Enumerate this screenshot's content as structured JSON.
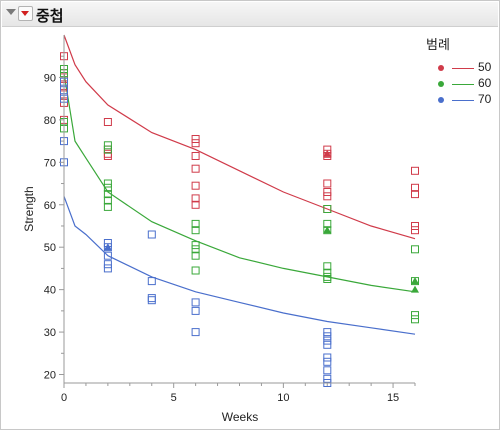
{
  "header": {
    "title": "중첩"
  },
  "legend": {
    "title": "범례",
    "items": [
      {
        "label": "50",
        "color": "#d03b4a"
      },
      {
        "label": "60",
        "color": "#3aa83a"
      },
      {
        "label": "70",
        "color": "#4a6fcc"
      }
    ]
  },
  "chart_data": {
    "type": "scatter",
    "title": "",
    "xlabel": "Weeks",
    "ylabel": "Strength",
    "xlim": [
      0,
      16
    ],
    "ylim": [
      18,
      100
    ],
    "xticks": [
      0,
      5,
      10,
      15
    ],
    "yticks": [
      20,
      30,
      40,
      50,
      60,
      70,
      80,
      90
    ],
    "grid": false,
    "legend_position": "right",
    "series": [
      {
        "name": "50",
        "color": "#d03b4a",
        "points": [
          [
            0,
            95
          ],
          [
            0,
            92
          ],
          [
            0,
            91
          ],
          [
            0,
            90
          ],
          [
            0,
            88
          ],
          [
            0,
            86
          ],
          [
            0,
            84
          ],
          [
            0,
            80
          ],
          [
            2,
            79.5
          ],
          [
            2,
            73
          ],
          [
            2,
            72
          ],
          [
            2,
            71.5
          ],
          [
            6,
            75.5
          ],
          [
            6,
            74.5
          ],
          [
            6,
            71.5
          ],
          [
            6,
            68.5
          ],
          [
            6,
            64.5
          ],
          [
            6,
            61.5
          ],
          [
            6,
            60
          ],
          [
            12,
            73
          ],
          [
            12,
            72
          ],
          [
            12,
            71.5
          ],
          [
            12,
            65
          ],
          [
            12,
            63
          ],
          [
            12,
            62
          ],
          [
            12,
            59
          ],
          [
            16,
            68
          ],
          [
            16,
            64
          ],
          [
            16,
            62.5
          ],
          [
            16,
            55
          ],
          [
            16,
            54
          ]
        ],
        "filled_points": [
          [
            12,
            72
          ]
        ],
        "curve": [
          [
            0,
            100
          ],
          [
            0.5,
            93
          ],
          [
            1,
            89
          ],
          [
            2,
            83.5
          ],
          [
            4,
            77
          ],
          [
            6,
            73
          ],
          [
            8,
            68
          ],
          [
            10,
            63
          ],
          [
            12,
            59
          ],
          [
            14,
            55
          ],
          [
            16,
            52
          ]
        ]
      },
      {
        "name": "60",
        "color": "#3aa83a",
        "points": [
          [
            0,
            92
          ],
          [
            0,
            91
          ],
          [
            0,
            79.5
          ],
          [
            0,
            78
          ],
          [
            2,
            74
          ],
          [
            2,
            73
          ],
          [
            2,
            65
          ],
          [
            2,
            64
          ],
          [
            2,
            62.5
          ],
          [
            2,
            61
          ],
          [
            2,
            59.5
          ],
          [
            6,
            55.5
          ],
          [
            6,
            54
          ],
          [
            6,
            50.5
          ],
          [
            6,
            49.5
          ],
          [
            6,
            48
          ],
          [
            6,
            44.5
          ],
          [
            12,
            59
          ],
          [
            12,
            55.5
          ],
          [
            12,
            54
          ],
          [
            12,
            45.5
          ],
          [
            12,
            44
          ],
          [
            12,
            43
          ],
          [
            12,
            42.5
          ],
          [
            16,
            49.5
          ],
          [
            16,
            42
          ],
          [
            16,
            34
          ],
          [
            16,
            33
          ]
        ],
        "filled_points": [
          [
            12,
            54
          ],
          [
            16,
            42
          ],
          [
            16,
            40
          ]
        ],
        "curve": [
          [
            0,
            91
          ],
          [
            0.5,
            75
          ],
          [
            1,
            71
          ],
          [
            2,
            63
          ],
          [
            4,
            56
          ],
          [
            6,
            51.5
          ],
          [
            8,
            47.5
          ],
          [
            10,
            45
          ],
          [
            12,
            43
          ],
          [
            14,
            41
          ],
          [
            16,
            39.5
          ]
        ]
      },
      {
        "name": "70",
        "color": "#4a6fcc",
        "points": [
          [
            0,
            89
          ],
          [
            0,
            87
          ],
          [
            0,
            85
          ],
          [
            0,
            75
          ],
          [
            0,
            70
          ],
          [
            2,
            51
          ],
          [
            2,
            50
          ],
          [
            2,
            48
          ],
          [
            2,
            46
          ],
          [
            2,
            45
          ],
          [
            4,
            53
          ],
          [
            4,
            42
          ],
          [
            4,
            38
          ],
          [
            4,
            37.5
          ],
          [
            6,
            37
          ],
          [
            6,
            35
          ],
          [
            6,
            30
          ],
          [
            12,
            30
          ],
          [
            12,
            29
          ],
          [
            12,
            28
          ],
          [
            12,
            27
          ],
          [
            12,
            24
          ],
          [
            12,
            23
          ],
          [
            12,
            21
          ],
          [
            12,
            19
          ],
          [
            12,
            18
          ]
        ],
        "filled_points": [
          [
            2,
            50
          ]
        ],
        "curve": [
          [
            0,
            62
          ],
          [
            0.5,
            55
          ],
          [
            1,
            53
          ],
          [
            2,
            48
          ],
          [
            4,
            43
          ],
          [
            6,
            39.5
          ],
          [
            8,
            37
          ],
          [
            10,
            34.5
          ],
          [
            12,
            32.5
          ],
          [
            14,
            31
          ],
          [
            16,
            29.5
          ]
        ]
      }
    ]
  }
}
